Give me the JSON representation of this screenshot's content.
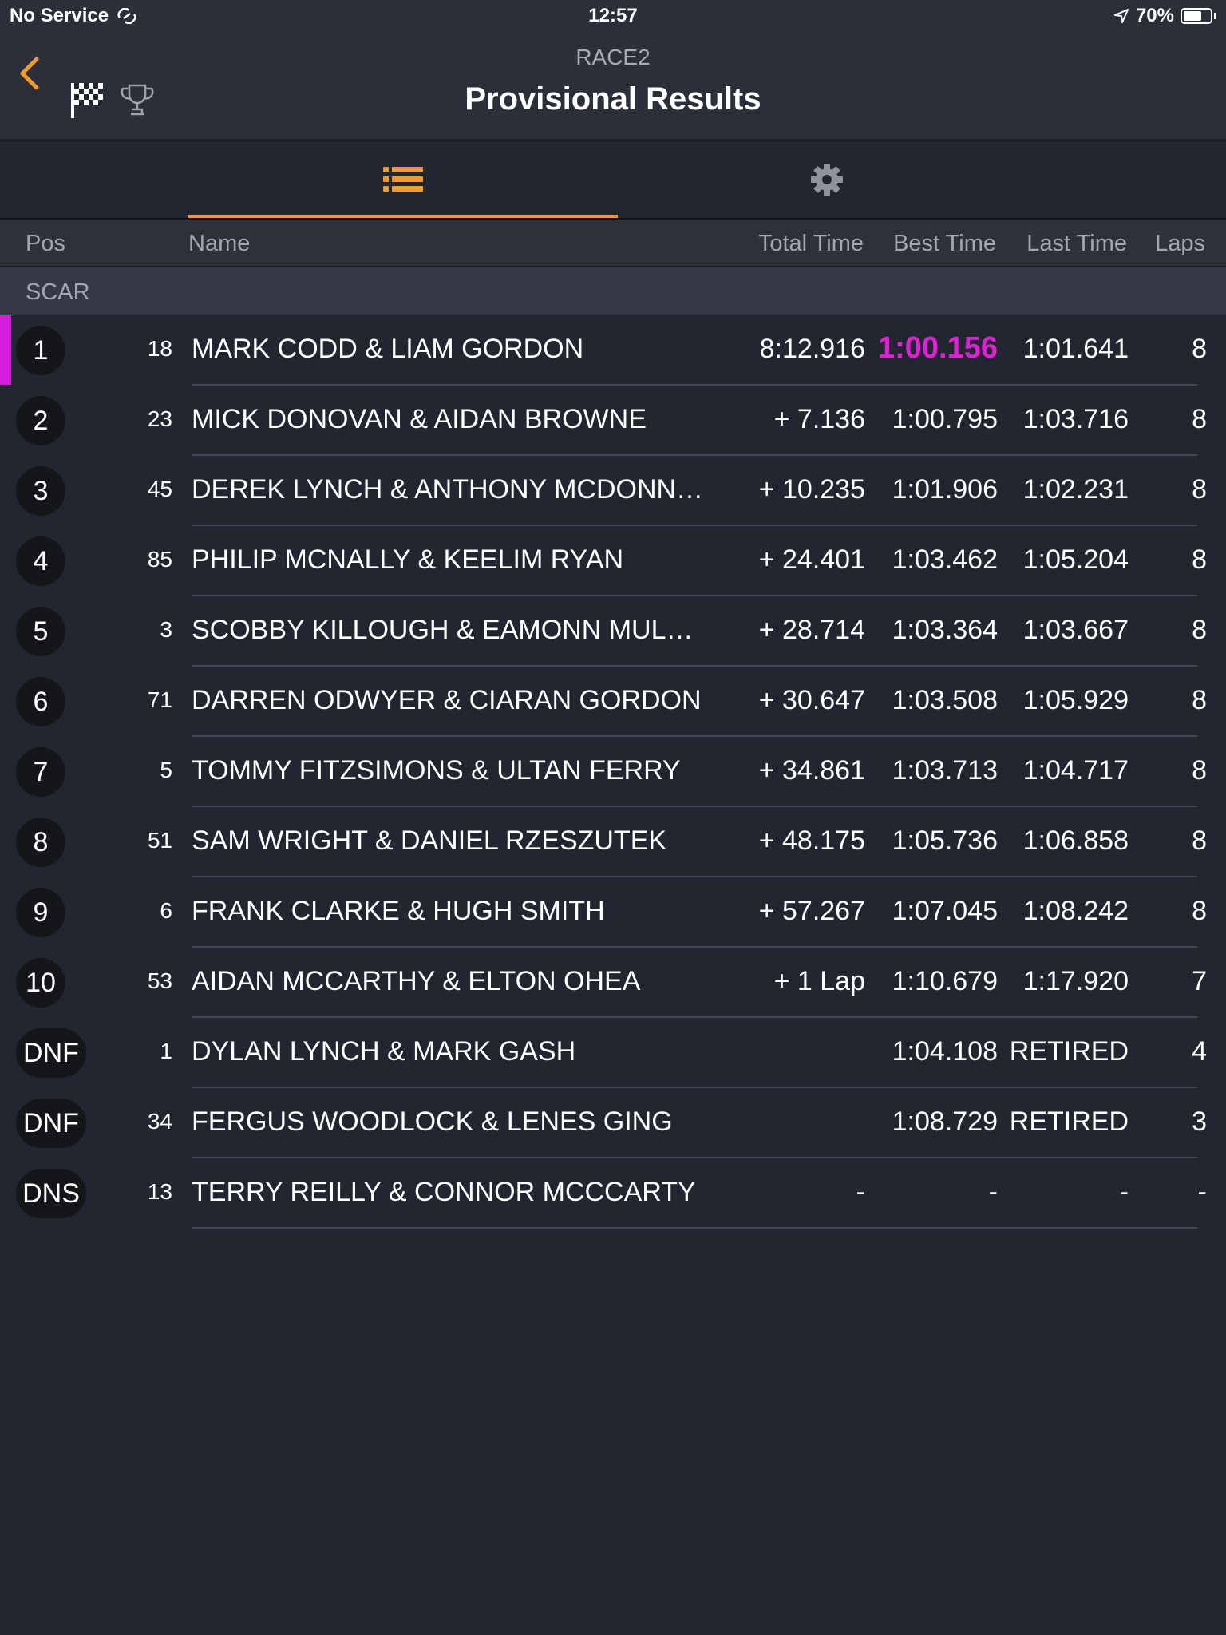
{
  "status_bar": {
    "carrier": "No Service",
    "time": "12:57",
    "battery": "70%",
    "battery_level": 0.7
  },
  "header": {
    "subtitle": "RACE2",
    "title": "Provisional Results",
    "icons": [
      "checkered-flag-icon",
      "trophy-icon"
    ]
  },
  "tabs": [
    {
      "icon": "list-icon",
      "active": true
    },
    {
      "icon": "gear-icon",
      "active": false
    }
  ],
  "colors": {
    "accent": "#f29a2e",
    "highlight": "#e11fd6",
    "background": "#222630"
  },
  "columns": {
    "pos": "Pos",
    "name": "Name",
    "total": "Total Time",
    "best": "Best Time",
    "last": "Last Time",
    "laps": "Laps"
  },
  "group": "SCAR",
  "rows": [
    {
      "pos": "1",
      "num": "18",
      "name": "MARK CODD & LIAM GORDON",
      "total": "8:12.916",
      "best": "1:00.156",
      "last": "1:01.641",
      "laps": "8",
      "fastest": true
    },
    {
      "pos": "2",
      "num": "23",
      "name": "MICK DONOVAN & AIDAN BROWNE",
      "total": "+ 7.136",
      "best": "1:00.795",
      "last": "1:03.716",
      "laps": "8"
    },
    {
      "pos": "3",
      "num": "45",
      "name": "DEREK LYNCH & ANTHONY MCDONN…",
      "total": "+ 10.235",
      "best": "1:01.906",
      "last": "1:02.231",
      "laps": "8"
    },
    {
      "pos": "4",
      "num": "85",
      "name": "PHILIP MCNALLY & KEELIM RYAN",
      "total": "+ 24.401",
      "best": "1:03.462",
      "last": "1:05.204",
      "laps": "8"
    },
    {
      "pos": "5",
      "num": "3",
      "name": "SCOBBY KILLOUGH & EAMONN MUL…",
      "total": "+ 28.714",
      "best": "1:03.364",
      "last": "1:03.667",
      "laps": "8"
    },
    {
      "pos": "6",
      "num": "71",
      "name": "DARREN ODWYER & CIARAN GORDON",
      "total": "+ 30.647",
      "best": "1:03.508",
      "last": "1:05.929",
      "laps": "8"
    },
    {
      "pos": "7",
      "num": "5",
      "name": "TOMMY FITZSIMONS & ULTAN FERRY",
      "total": "+ 34.861",
      "best": "1:03.713",
      "last": "1:04.717",
      "laps": "8"
    },
    {
      "pos": "8",
      "num": "51",
      "name": "SAM WRIGHT & DANIEL RZESZUTEK",
      "total": "+ 48.175",
      "best": "1:05.736",
      "last": "1:06.858",
      "laps": "8"
    },
    {
      "pos": "9",
      "num": "6",
      "name": "FRANK CLARKE & HUGH SMITH",
      "total": "+ 57.267",
      "best": "1:07.045",
      "last": "1:08.242",
      "laps": "8"
    },
    {
      "pos": "10",
      "num": "53",
      "name": "AIDAN MCCARTHY & ELTON OHEA",
      "total": "+ 1 Lap",
      "best": "1:10.679",
      "last": "1:17.920",
      "laps": "7"
    },
    {
      "pos": "DNF",
      "num": "1",
      "name": "DYLAN LYNCH & MARK GASH",
      "total": "",
      "best": "1:04.108",
      "last": "RETIRED",
      "laps": "4"
    },
    {
      "pos": "DNF",
      "num": "34",
      "name": "FERGUS WOODLOCK & LENES GING",
      "total": "",
      "best": "1:08.729",
      "last": "RETIRED",
      "laps": "3"
    },
    {
      "pos": "DNS",
      "num": "13",
      "name": "TERRY REILLY & CONNOR MCCCARTY",
      "total": "-",
      "best": "-",
      "last": "-",
      "laps": "-"
    }
  ]
}
